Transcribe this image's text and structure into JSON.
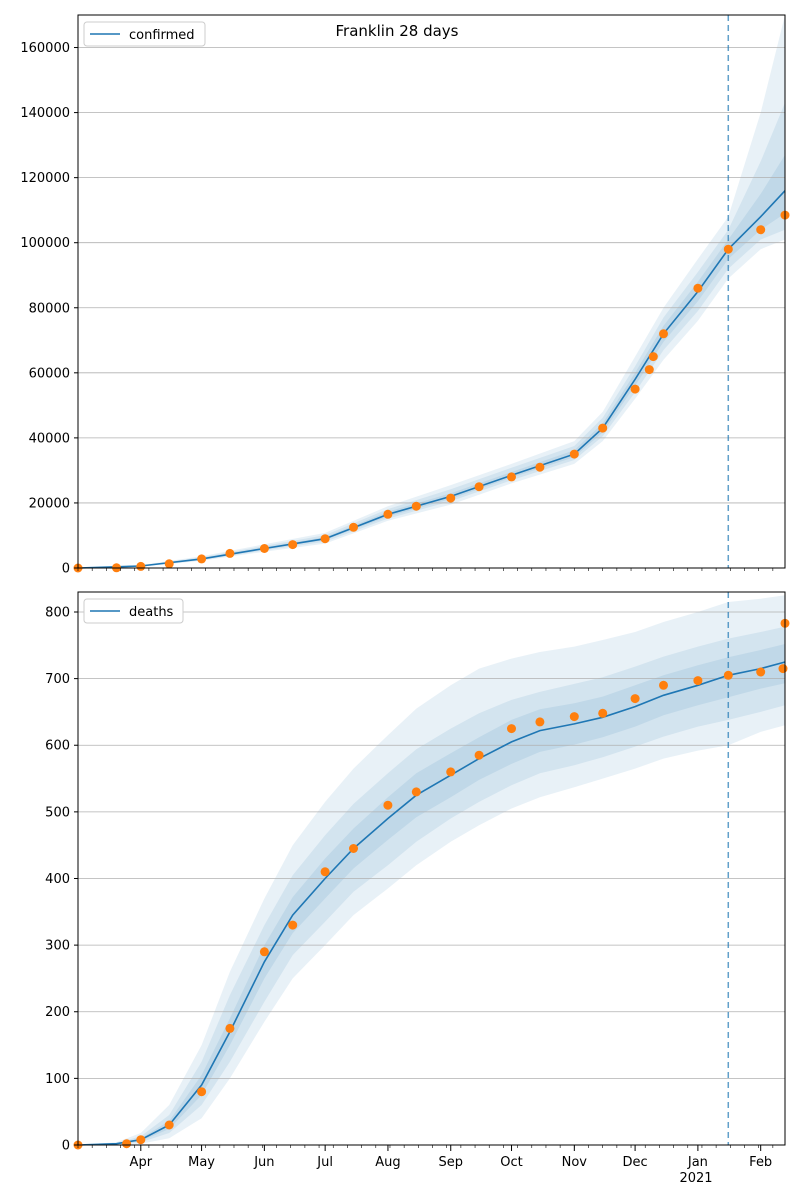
{
  "title": "Franklin 28 days",
  "year_label": "2021",
  "month_labels": [
    "Apr",
    "May",
    "Jun",
    "Jul",
    "Aug",
    "Sep",
    "Oct",
    "Nov",
    "Dec",
    "Jan",
    "Feb"
  ],
  "colors": {
    "model_line": "#1f77b4",
    "observed": "#ff7f0e",
    "band": "#1f77b4",
    "grid": "#b0b0b0",
    "forecast_line": "#1f77b4"
  },
  "chart_data": [
    {
      "type": "line",
      "legend": "confirmed",
      "legend_placement": "top-left",
      "x_range": [
        "2020-03-01",
        "2021-02-13"
      ],
      "forecast_start": "2021-01-16",
      "ylim": [
        0,
        170000
      ],
      "yticks": [
        0,
        20000,
        40000,
        60000,
        80000,
        100000,
        120000,
        140000,
        160000
      ],
      "grid": "horizontal",
      "model": {
        "x": [
          "2020-03-01",
          "2020-04-01",
          "2020-05-01",
          "2020-06-01",
          "2020-07-01",
          "2020-08-01",
          "2020-09-01",
          "2020-10-01",
          "2020-11-01",
          "2020-11-15",
          "2020-12-01",
          "2020-12-15",
          "2021-01-01",
          "2021-01-16",
          "2021-02-01",
          "2021-02-13"
        ],
        "y": [
          0,
          600,
          2800,
          6000,
          9000,
          16500,
          22000,
          28500,
          35000,
          43000,
          58000,
          72000,
          85000,
          98000,
          108000,
          116000
        ],
        "bands": [
          {
            "lower": [
              0,
              400,
              2200,
              5000,
              7500,
              14500,
              19500,
              26000,
              32000,
              39000,
              52000,
              64000,
              76000,
              89000,
              98000,
              101000
            ],
            "upper": [
              0,
              900,
              3600,
              7300,
              10800,
              19000,
              25500,
              32000,
              39000,
              48000,
              65000,
              80000,
              95000,
              108000,
              140000,
              170000
            ]
          },
          {
            "lower": [
              0,
              480,
              2400,
              5400,
              8100,
              15200,
              20500,
              27000,
              33200,
              40500,
              54000,
              67000,
              79000,
              92000,
              101000,
              104000
            ],
            "upper": [
              0,
              780,
              3300,
              6800,
              10100,
              18100,
              24200,
              30800,
              37500,
              46200,
              62000,
              77000,
              91000,
              104000,
              125000,
              143000
            ]
          },
          {
            "lower": [
              0,
              540,
              2600,
              5700,
              8600,
              15800,
              21200,
              27800,
              34100,
              41700,
              56000,
              69500,
              82000,
              95000,
              104000,
              109000
            ],
            "upper": [
              0,
              680,
              3050,
              6400,
              9500,
              17300,
              23000,
              29500,
              36200,
              44500,
              60000,
              74500,
              88000,
              101000,
              115000,
              127000
            ]
          }
        ]
      },
      "observed": {
        "x": [
          "2020-03-01",
          "2020-03-20",
          "2020-04-01",
          "2020-04-15",
          "2020-05-01",
          "2020-05-15",
          "2020-06-01",
          "2020-06-15",
          "2020-07-01",
          "2020-07-15",
          "2020-08-01",
          "2020-08-15",
          "2020-09-01",
          "2020-09-15",
          "2020-10-01",
          "2020-10-15",
          "2020-11-01",
          "2020-11-15",
          "2020-12-01",
          "2020-12-08",
          "2020-12-10",
          "2020-12-15",
          "2021-01-01",
          "2021-01-16",
          "2021-02-01",
          "2021-02-13"
        ],
        "y": [
          0,
          50,
          500,
          1300,
          2800,
          4500,
          6000,
          7200,
          9000,
          12500,
          16500,
          19000,
          21500,
          25000,
          28000,
          31000,
          35000,
          43000,
          55000,
          61000,
          65000,
          72000,
          86000,
          98000,
          104000,
          108500
        ]
      }
    },
    {
      "type": "line",
      "legend": "deaths",
      "legend_placement": "top-left",
      "x_range": [
        "2020-03-01",
        "2021-02-13"
      ],
      "forecast_start": "2021-01-16",
      "ylim": [
        0,
        830
      ],
      "yticks": [
        0,
        100,
        200,
        300,
        400,
        500,
        600,
        700,
        800
      ],
      "grid": "horizontal",
      "model": {
        "x": [
          "2020-03-01",
          "2020-03-20",
          "2020-04-01",
          "2020-04-15",
          "2020-05-01",
          "2020-05-15",
          "2020-06-01",
          "2020-06-15",
          "2020-07-01",
          "2020-07-15",
          "2020-08-01",
          "2020-08-15",
          "2020-09-01",
          "2020-09-15",
          "2020-10-01",
          "2020-10-15",
          "2020-11-01",
          "2020-11-15",
          "2020-12-01",
          "2020-12-15",
          "2021-01-01",
          "2021-01-16",
          "2021-02-01",
          "2021-02-13"
        ],
        "y": [
          0,
          2,
          8,
          30,
          90,
          170,
          275,
          345,
          400,
          445,
          490,
          525,
          555,
          580,
          605,
          622,
          632,
          642,
          658,
          675,
          690,
          705,
          715,
          725
        ],
        "bands": [
          {
            "lower": [
              0,
              0,
              2,
              10,
              40,
              100,
              185,
              250,
              300,
              345,
              385,
              420,
              455,
              480,
              505,
              522,
              537,
              550,
              565,
              580,
              592,
              600,
              620,
              630
            ],
            "upper": [
              0,
              4,
              18,
              60,
              150,
              260,
              370,
              450,
              515,
              565,
              615,
              655,
              690,
              715,
              730,
              740,
              748,
              758,
              770,
              785,
              800,
              815,
              820,
              825
            ]
          },
          {
            "lower": [
              0,
              1,
              4,
              18,
              60,
              125,
              215,
              285,
              335,
              380,
              420,
              455,
              490,
              515,
              540,
              558,
              570,
              582,
              598,
              613,
              628,
              638,
              650,
              660
            ],
            "upper": [
              0,
              3,
              13,
              45,
              125,
              225,
              330,
              405,
              465,
              512,
              558,
              594,
              625,
              648,
              668,
              680,
              692,
              702,
              718,
              733,
              748,
              760,
              770,
              778
            ]
          },
          {
            "lower": [
              0,
              1,
              6,
              24,
              75,
              150,
              250,
              318,
              370,
              415,
              458,
              492,
              522,
              548,
              572,
              590,
              601,
              612,
              628,
              645,
              660,
              672,
              685,
              693
            ],
            "upper": [
              0,
              2,
              10,
              36,
              105,
              190,
              300,
              372,
              430,
              475,
              522,
              558,
              588,
              612,
              638,
              654,
              663,
              673,
              690,
              705,
              720,
              732,
              743,
              752
            ]
          }
        ]
      },
      "observed": {
        "x": [
          "2020-03-01",
          "2020-03-25",
          "2020-04-01",
          "2020-04-15",
          "2020-05-01",
          "2020-05-15",
          "2020-06-01",
          "2020-06-15",
          "2020-07-01",
          "2020-07-15",
          "2020-08-01",
          "2020-08-15",
          "2020-09-01",
          "2020-09-15",
          "2020-10-01",
          "2020-10-15",
          "2020-11-01",
          "2020-11-15",
          "2020-12-01",
          "2020-12-15",
          "2021-01-01",
          "2021-01-16",
          "2021-02-01",
          "2021-02-12",
          "2021-02-13"
        ],
        "y": [
          0,
          2,
          8,
          30,
          80,
          175,
          290,
          330,
          410,
          445,
          510,
          530,
          560,
          585,
          625,
          635,
          643,
          648,
          670,
          690,
          697,
          705,
          710,
          715,
          783
        ]
      }
    }
  ]
}
